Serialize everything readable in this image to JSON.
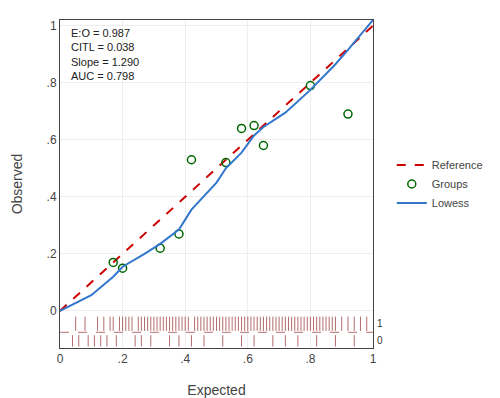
{
  "chart_data": {
    "type": "line",
    "xlabel": "Expected",
    "ylabel": "Observed",
    "annotation": "E:O = 0.987\nCITL = 0.038\nSlope = 1.290\nAUC = 0.798",
    "xlim": [
      0.0,
      1.0
    ],
    "ylim": [
      -0.13,
      1.02
    ],
    "xticks": [
      0,
      {
        "value": 0.2,
        "label": ".2"
      },
      {
        "value": 0.4,
        "label": ".4"
      },
      {
        "value": 0.6,
        "label": ".6"
      },
      {
        "value": 0.8,
        "label": ".8"
      },
      1
    ],
    "yticks": [
      0,
      {
        "value": 0.2,
        "label": ".2"
      },
      {
        "value": 0.4,
        "label": ".4"
      },
      {
        "value": 0.6,
        "label": ".6"
      },
      {
        "value": 0.8,
        "label": ".8"
      },
      1
    ],
    "grid": true,
    "legend": "right",
    "series": [
      {
        "name": "Reference",
        "type": "line",
        "line_style": "dashed",
        "color": "#cc0000",
        "x": [
          0.0,
          1.0
        ],
        "values": [
          0.0,
          1.0
        ]
      },
      {
        "name": "Groups",
        "type": "scatter",
        "marker": "open_circle",
        "color": "#006600",
        "x": [
          0.17,
          0.2,
          0.32,
          0.38,
          0.42,
          0.53,
          0.58,
          0.62,
          0.65,
          0.8,
          0.92
        ],
        "values": [
          0.17,
          0.15,
          0.22,
          0.27,
          0.53,
          0.52,
          0.64,
          0.65,
          0.58,
          0.79,
          0.69
        ]
      },
      {
        "name": "Lowess",
        "type": "line",
        "line_style": "solid",
        "color": "#3377cc",
        "x": [
          0.0,
          0.1,
          0.17,
          0.2,
          0.27,
          0.32,
          0.38,
          0.42,
          0.5,
          0.53,
          0.58,
          0.62,
          0.65,
          0.72,
          0.8,
          0.88,
          0.92,
          1.0
        ],
        "values": [
          0.0,
          0.055,
          0.12,
          0.155,
          0.2,
          0.235,
          0.285,
          0.355,
          0.45,
          0.5,
          0.555,
          0.615,
          0.645,
          0.695,
          0.775,
          0.865,
          0.915,
          1.02
        ]
      }
    ],
    "rug": {
      "color": "#993333",
      "divider_y": -0.075,
      "bands": [
        {
          "label": "1",
          "y_top": -0.02,
          "y_bot": -0.07,
          "x": [
            0.05,
            0.08,
            0.12,
            0.14,
            0.16,
            0.17,
            0.19,
            0.2,
            0.21,
            0.22,
            0.23,
            0.25,
            0.26,
            0.27,
            0.28,
            0.29,
            0.3,
            0.31,
            0.32,
            0.33,
            0.34,
            0.35,
            0.36,
            0.37,
            0.38,
            0.39,
            0.4,
            0.41,
            0.43,
            0.44,
            0.45,
            0.46,
            0.47,
            0.48,
            0.49,
            0.5,
            0.51,
            0.52,
            0.53,
            0.54,
            0.55,
            0.56,
            0.57,
            0.58,
            0.59,
            0.6,
            0.61,
            0.62,
            0.63,
            0.64,
            0.65,
            0.66,
            0.67,
            0.68,
            0.69,
            0.7,
            0.71,
            0.72,
            0.73,
            0.74,
            0.75,
            0.76,
            0.77,
            0.78,
            0.79,
            0.8,
            0.81,
            0.82,
            0.83,
            0.84,
            0.85,
            0.86,
            0.87,
            0.88,
            0.9,
            0.92,
            0.94,
            0.96,
            0.98
          ]
        },
        {
          "label": "0",
          "y_top": -0.085,
          "y_bot": -0.125,
          "x": [
            0.04,
            0.06,
            0.09,
            0.11,
            0.13,
            0.15,
            0.18,
            0.24,
            0.26,
            0.29,
            0.35,
            0.38,
            0.42,
            0.46,
            0.52,
            0.58,
            0.62,
            0.68,
            0.72,
            0.76,
            0.82,
            0.88,
            0.94
          ]
        }
      ]
    }
  }
}
